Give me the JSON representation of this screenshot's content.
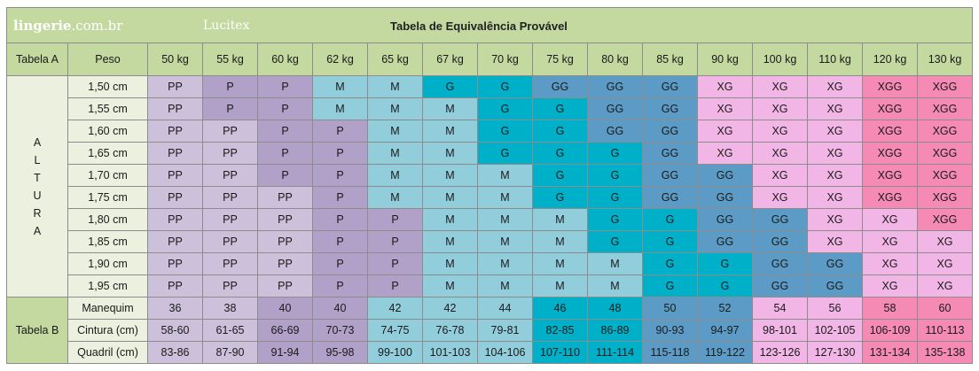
{
  "header": {
    "brand_bold": "lingerie",
    "brand_rest": ".com.br",
    "subtitle": "Lucitex",
    "title": "Tabela de Equivalência Provável"
  },
  "colors": {
    "PP": "#ccc0da",
    "P": "#b1a0c7",
    "M": "#92cddc",
    "G": "#00b0c8",
    "GG": "#5b9bc5",
    "XG": "#f2b6e6",
    "XGG": "#f58ab4",
    "header_green": "#c3d9a0",
    "light_green": "#ebf1de"
  },
  "chart_data": {
    "type": "table",
    "title": "Tabela de Equivalência Provável",
    "table_a_label": "Tabela A",
    "weight_label": "Peso",
    "height_axis_label": "ALTURA",
    "weights": [
      "50 kg",
      "55 kg",
      "60 kg",
      "62 kg",
      "65 kg",
      "67 kg",
      "70 kg",
      "75 kg",
      "80 kg",
      "85 kg",
      "90 kg",
      "100 kg",
      "110 kg",
      "120 kg",
      "130 kg"
    ],
    "heights": [
      "1,50 cm",
      "1,55 cm",
      "1,60 cm",
      "1,65 cm",
      "1,70 cm",
      "1,75 cm",
      "1,80 cm",
      "1,85 cm",
      "1,90 cm",
      "1,95 cm"
    ],
    "sizes": [
      [
        "PP",
        "P",
        "P",
        "M",
        "M",
        "G",
        "G",
        "GG",
        "GG",
        "GG",
        "XG",
        "XG",
        "XG",
        "XGG",
        "XGG"
      ],
      [
        "PP",
        "P",
        "P",
        "M",
        "M",
        "M",
        "G",
        "G",
        "GG",
        "GG",
        "XG",
        "XG",
        "XG",
        "XGG",
        "XGG"
      ],
      [
        "PP",
        "PP",
        "P",
        "P",
        "M",
        "M",
        "G",
        "G",
        "GG",
        "GG",
        "XG",
        "XG",
        "XG",
        "XGG",
        "XGG"
      ],
      [
        "PP",
        "PP",
        "P",
        "P",
        "M",
        "M",
        "G",
        "G",
        "G",
        "GG",
        "XG",
        "XG",
        "XG",
        "XGG",
        "XGG"
      ],
      [
        "PP",
        "PP",
        "P",
        "P",
        "M",
        "M",
        "M",
        "G",
        "G",
        "GG",
        "GG",
        "XG",
        "XG",
        "XGG",
        "XGG"
      ],
      [
        "PP",
        "PP",
        "PP",
        "P",
        "M",
        "M",
        "M",
        "G",
        "G",
        "GG",
        "GG",
        "XG",
        "XG",
        "XGG",
        "XGG"
      ],
      [
        "PP",
        "PP",
        "PP",
        "P",
        "P",
        "M",
        "M",
        "M",
        "G",
        "G",
        "GG",
        "GG",
        "XG",
        "XG",
        "XGG"
      ],
      [
        "PP",
        "PP",
        "PP",
        "P",
        "P",
        "M",
        "M",
        "M",
        "G",
        "G",
        "GG",
        "GG",
        "XG",
        "XG",
        "XG"
      ],
      [
        "PP",
        "PP",
        "PP",
        "P",
        "P",
        "M",
        "M",
        "M",
        "M",
        "G",
        "G",
        "GG",
        "GG",
        "XG",
        "XG"
      ],
      [
        "PP",
        "PP",
        "PP",
        "P",
        "P",
        "M",
        "M",
        "M",
        "M",
        "G",
        "G",
        "GG",
        "GG",
        "XG",
        "XG"
      ]
    ],
    "table_b_label": "Tabela B",
    "measure_rows": [
      {
        "label": "Manequim",
        "values": [
          "36",
          "38",
          "40",
          "40",
          "42",
          "42",
          "44",
          "46",
          "48",
          "50",
          "52",
          "54",
          "56",
          "58",
          "60"
        ]
      },
      {
        "label": "Cintura (cm)",
        "values": [
          "58-60",
          "61-65",
          "66-69",
          "70-73",
          "74-75",
          "76-78",
          "79-81",
          "82-85",
          "86-89",
          "90-93",
          "94-97",
          "98-101",
          "102-105",
          "106-109",
          "110-113"
        ]
      },
      {
        "label": "Quadril (cm)",
        "values": [
          "83-86",
          "87-90",
          "91-94",
          "95-98",
          "99-100",
          "101-103",
          "104-106",
          "107-110",
          "111-114",
          "115-118",
          "119-122",
          "123-126",
          "127-130",
          "131-134",
          "135-138"
        ]
      }
    ],
    "measure_colors": [
      "#ccc0da",
      "#ccc0da",
      "#b1a0c7",
      "#b1a0c7",
      "#92cddc",
      "#92cddc",
      "#92cddc",
      "#00b0c8",
      "#00b0c8",
      "#5b9bc5",
      "#5b9bc5",
      "#f2b6e6",
      "#f2b6e6",
      "#f58ab4",
      "#f58ab4"
    ]
  }
}
